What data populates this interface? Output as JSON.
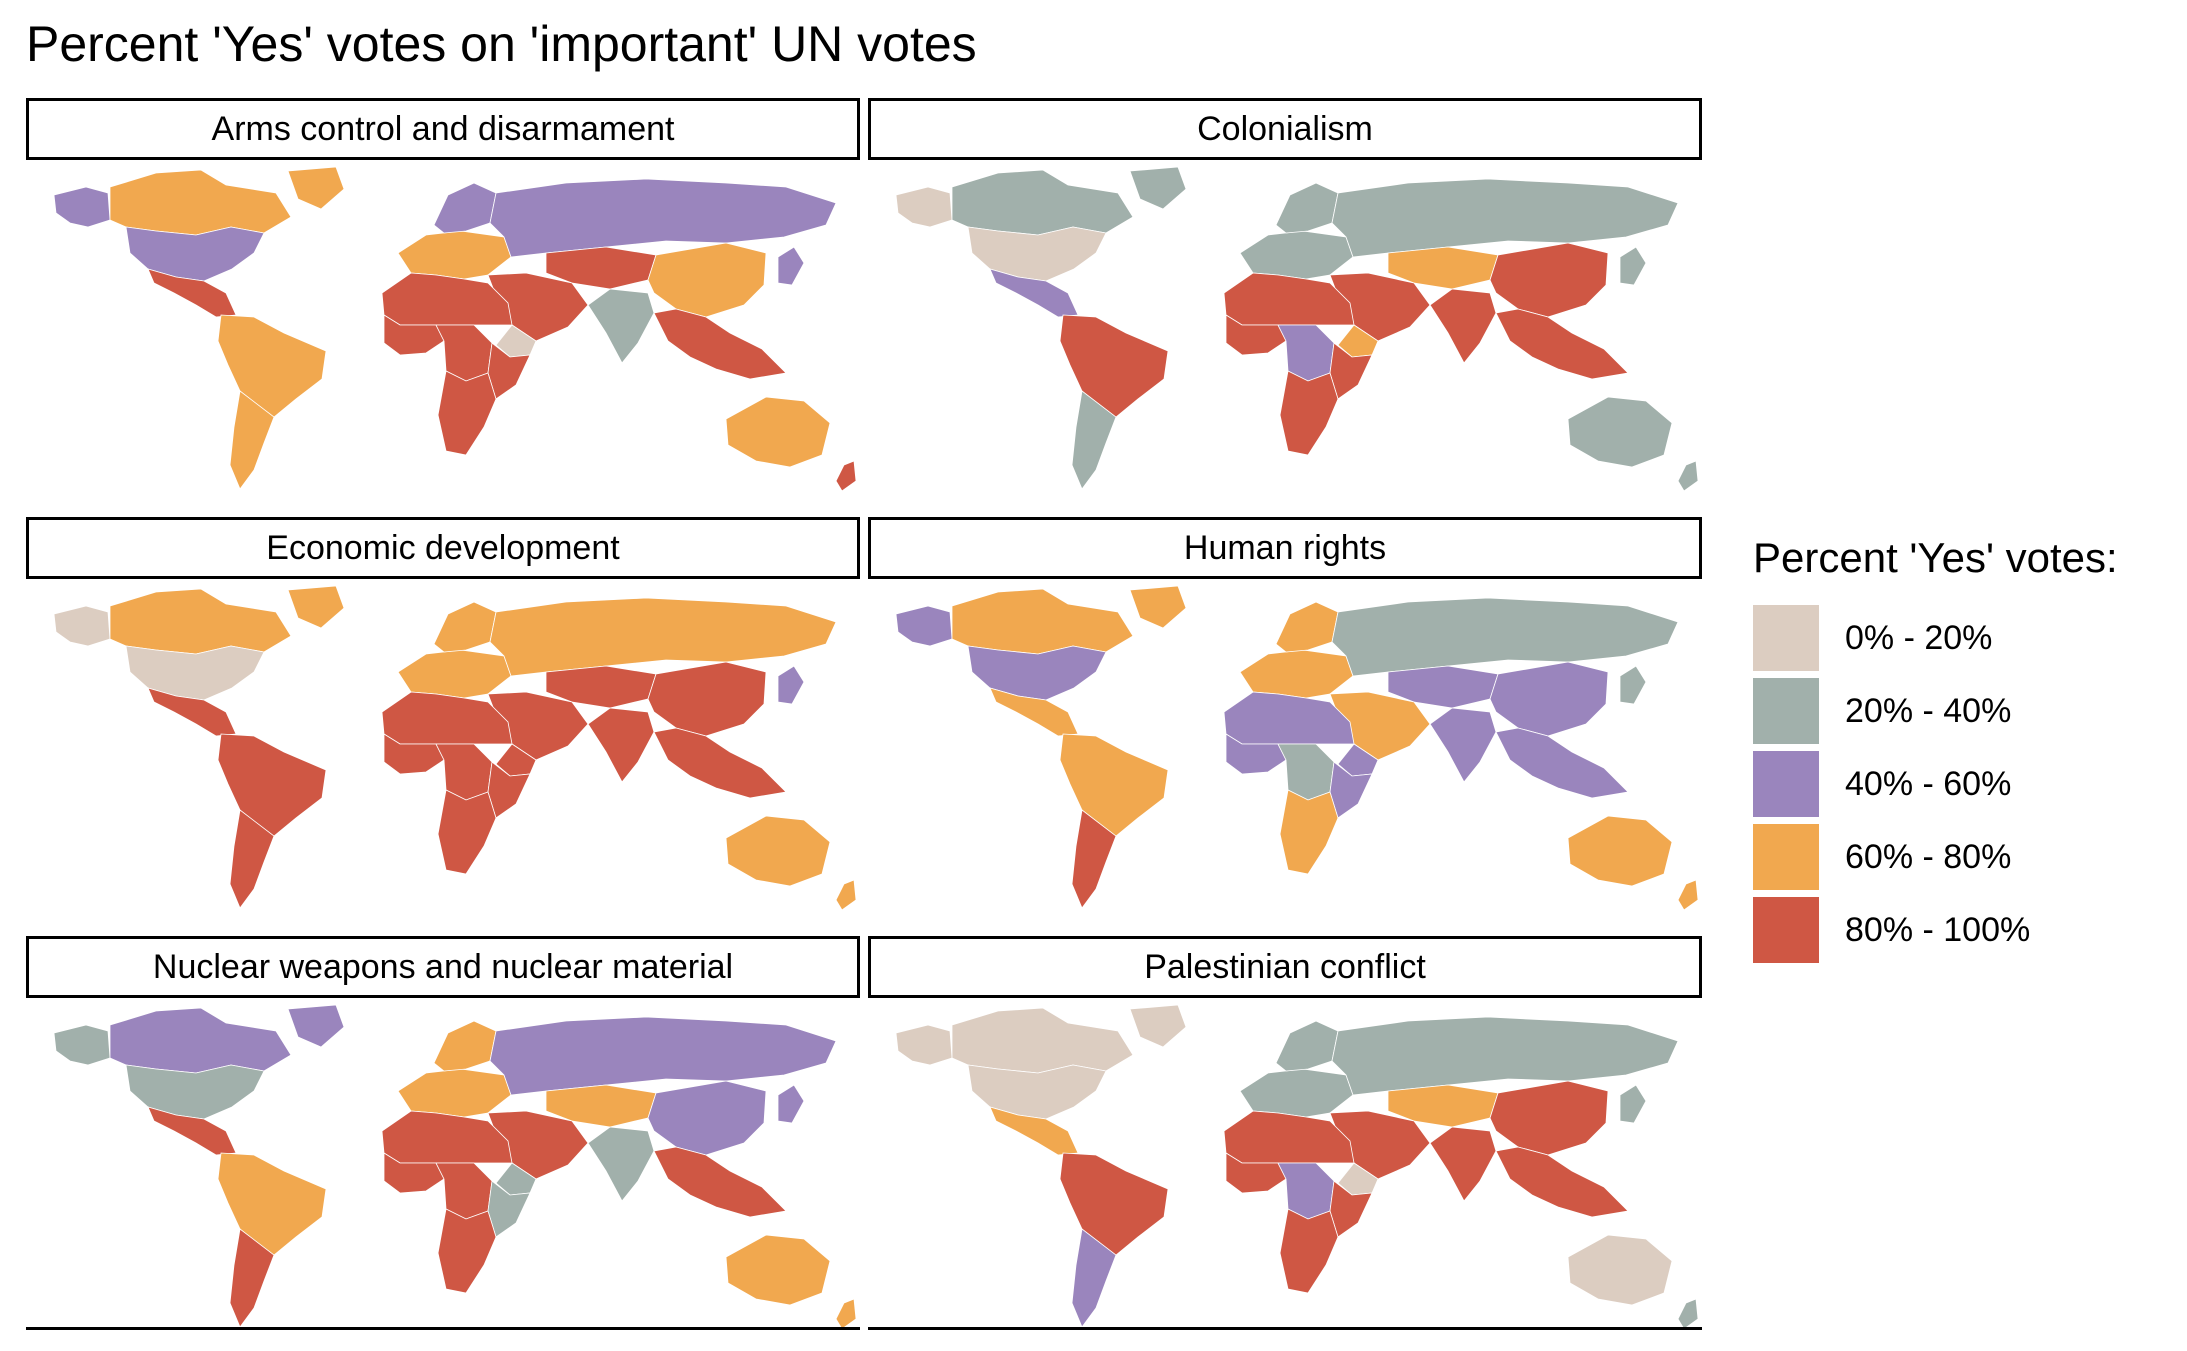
{
  "title": "Percent 'Yes' votes on 'important' UN votes",
  "legend": {
    "title": "Percent 'Yes' votes:",
    "items": [
      {
        "label": "0% - 20%",
        "color": "#dccdc1"
      },
      {
        "label": "20% - 40%",
        "color": "#a1b0ab"
      },
      {
        "label": "40% - 60%",
        "color": "#9a85bd"
      },
      {
        "label": "60% - 80%",
        "color": "#f1a84f"
      },
      {
        "label": "80% - 100%",
        "color": "#cf5744"
      }
    ]
  },
  "panels": [
    {
      "title": "Arms control and disarmament",
      "regions": {
        "northamerica_north": 3,
        "usa": 2,
        "alaska": 2,
        "greenland": 3,
        "mexico_central": 4,
        "south_america": 3,
        "south_cone": 3,
        "europe_west": 3,
        "scandinavia": 2,
        "russia": 2,
        "central_asia": 4,
        "middle_east": 4,
        "north_africa": 4,
        "west_africa": 4,
        "central_africa": 4,
        "east_africa": 4,
        "southern_africa": 4,
        "horn": 0,
        "south_asia": 1,
        "china": 3,
        "southeast_asia": 4,
        "japan": 2,
        "australia": 3,
        "newzealand": 4
      }
    },
    {
      "title": "Colonialism",
      "regions": {
        "northamerica_north": 1,
        "usa": 0,
        "alaska": 0,
        "greenland": 1,
        "mexico_central": 2,
        "south_america": 4,
        "south_cone": 1,
        "europe_west": 1,
        "scandinavia": 1,
        "russia": 1,
        "central_asia": 3,
        "middle_east": 4,
        "north_africa": 4,
        "west_africa": 4,
        "central_africa": 2,
        "east_africa": 4,
        "southern_africa": 4,
        "horn": 3,
        "south_asia": 4,
        "china": 4,
        "southeast_asia": 4,
        "japan": 1,
        "australia": 1,
        "newzealand": 1
      }
    },
    {
      "title": "Economic development",
      "regions": {
        "northamerica_north": 3,
        "usa": 0,
        "alaska": 0,
        "greenland": 3,
        "mexico_central": 4,
        "south_america": 4,
        "south_cone": 4,
        "europe_west": 3,
        "scandinavia": 3,
        "russia": 3,
        "central_asia": 4,
        "middle_east": 4,
        "north_africa": 4,
        "west_africa": 4,
        "central_africa": 4,
        "east_africa": 4,
        "southern_africa": 4,
        "horn": 4,
        "south_asia": 4,
        "china": 4,
        "southeast_asia": 4,
        "japan": 2,
        "australia": 3,
        "newzealand": 3
      }
    },
    {
      "title": "Human rights",
      "regions": {
        "northamerica_north": 3,
        "usa": 2,
        "alaska": 2,
        "greenland": 3,
        "mexico_central": 3,
        "south_america": 3,
        "south_cone": 4,
        "europe_west": 3,
        "scandinavia": 3,
        "russia": 1,
        "central_asia": 2,
        "middle_east": 3,
        "north_africa": 2,
        "west_africa": 2,
        "central_africa": 1,
        "east_africa": 2,
        "southern_africa": 3,
        "horn": 2,
        "south_asia": 2,
        "china": 2,
        "southeast_asia": 2,
        "japan": 1,
        "australia": 3,
        "newzealand": 3
      }
    },
    {
      "title": "Nuclear weapons and nuclear material",
      "regions": {
        "northamerica_north": 2,
        "usa": 1,
        "alaska": 1,
        "greenland": 2,
        "mexico_central": 4,
        "south_america": 3,
        "south_cone": 4,
        "europe_west": 3,
        "scandinavia": 3,
        "russia": 2,
        "central_asia": 3,
        "middle_east": 4,
        "north_africa": 4,
        "west_africa": 4,
        "central_africa": 4,
        "east_africa": 1,
        "southern_africa": 4,
        "horn": 1,
        "south_asia": 1,
        "china": 2,
        "southeast_asia": 4,
        "japan": 2,
        "australia": 3,
        "newzealand": 3
      }
    },
    {
      "title": "Palestinian conflict",
      "regions": {
        "northamerica_north": 0,
        "usa": 0,
        "alaska": 0,
        "greenland": 0,
        "mexico_central": 3,
        "south_america": 4,
        "south_cone": 2,
        "europe_west": 1,
        "scandinavia": 1,
        "russia": 1,
        "central_asia": 3,
        "middle_east": 4,
        "north_africa": 4,
        "west_africa": 4,
        "central_africa": 2,
        "east_africa": 4,
        "southern_africa": 4,
        "horn": 0,
        "south_asia": 4,
        "china": 4,
        "southeast_asia": 4,
        "japan": 1,
        "australia": 0,
        "newzealand": 1
      }
    }
  ]
}
